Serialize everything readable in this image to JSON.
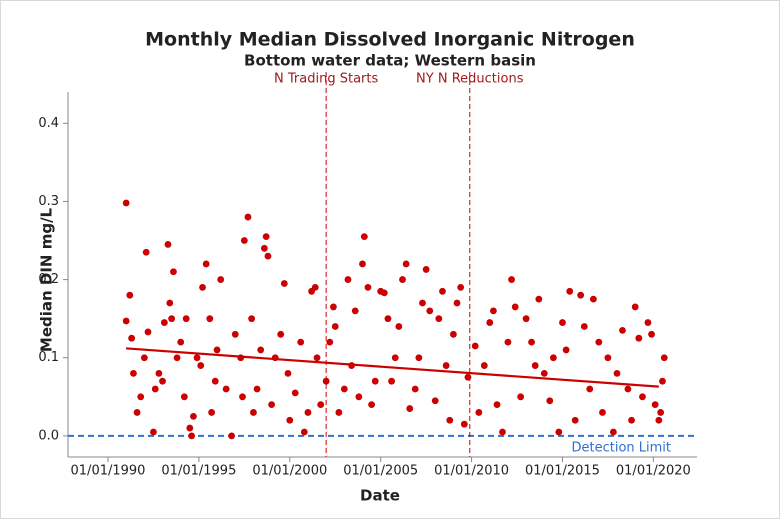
{
  "chart_data": {
    "type": "scatter",
    "title": "Monthly Median Dissolved Inorganic Nitrogen",
    "subtitle": "Bottom water data; Western basin",
    "xlabel": "Date",
    "ylabel": "Median DIN mg/L",
    "color": "#cc0000",
    "xlim": [
      1987.8,
      2022.4
    ],
    "ylim": [
      -0.027,
      0.44
    ],
    "xticks": [
      {
        "value": 1990,
        "label": "01/01/1990"
      },
      {
        "value": 1995,
        "label": "01/01/1995"
      },
      {
        "value": 2000,
        "label": "01/01/2000"
      },
      {
        "value": 2005,
        "label": "01/01/2005"
      },
      {
        "value": 2010,
        "label": "01/01/2010"
      },
      {
        "value": 2015,
        "label": "01/01/2015"
      },
      {
        "value": 2020,
        "label": "01/01/2020"
      }
    ],
    "yticks": [
      {
        "value": 0,
        "label": "0.0"
      },
      0.1,
      0.2,
      0.3,
      0.4
    ],
    "x": [
      1991.0,
      1991.0,
      1991.2,
      1991.3,
      1991.4,
      1991.6,
      1991.8,
      1992.0,
      1992.1,
      1992.2,
      1992.5,
      1992.6,
      1992.8,
      1993.0,
      1993.1,
      1993.3,
      1993.4,
      1993.5,
      1993.6,
      1993.8,
      1994.0,
      1994.2,
      1994.3,
      1994.5,
      1994.6,
      1994.7,
      1994.9,
      1995.1,
      1995.2,
      1995.4,
      1995.6,
      1995.7,
      1995.9,
      1996.0,
      1996.2,
      1996.5,
      1996.8,
      1997.0,
      1997.3,
      1997.4,
      1997.5,
      1997.7,
      1997.9,
      1998.0,
      1998.2,
      1998.4,
      1998.6,
      1998.7,
      1998.8,
      1999.0,
      1999.2,
      1999.5,
      1999.7,
      1999.9,
      2000.0,
      2000.3,
      2000.6,
      2000.8,
      2001.0,
      2001.2,
      2001.4,
      2001.5,
      2001.7,
      2002.0,
      2002.2,
      2002.4,
      2002.5,
      2002.7,
      2003.0,
      2003.2,
      2003.4,
      2003.6,
      2003.8,
      2004.0,
      2004.1,
      2004.3,
      2004.5,
      2004.7,
      2005.0,
      2005.2,
      2005.4,
      2005.6,
      2005.8,
      2006.0,
      2006.2,
      2006.4,
      2006.6,
      2006.9,
      2007.1,
      2007.3,
      2007.5,
      2007.7,
      2008.0,
      2008.2,
      2008.4,
      2008.6,
      2008.8,
      2009.0,
      2009.2,
      2009.4,
      2009.6,
      2009.8,
      2010.2,
      2010.4,
      2010.7,
      2011.0,
      2011.2,
      2011.4,
      2011.7,
      2012.0,
      2012.2,
      2012.4,
      2012.7,
      2013.0,
      2013.3,
      2013.5,
      2013.7,
      2014.0,
      2014.3,
      2014.5,
      2014.8,
      2015.0,
      2015.2,
      2015.4,
      2015.7,
      2016.0,
      2016.2,
      2016.5,
      2016.7,
      2017.0,
      2017.2,
      2017.5,
      2017.8,
      2018.0,
      2018.3,
      2018.6,
      2018.8,
      2019.0,
      2019.2,
      2019.4,
      2019.7,
      2019.9,
      2020.1,
      2020.3,
      2020.4,
      2020.5,
      2020.6
    ],
    "values": [
      0.298,
      0.147,
      0.18,
      0.125,
      0.08,
      0.03,
      0.05,
      0.1,
      0.235,
      0.133,
      0.005,
      0.06,
      0.08,
      0.07,
      0.145,
      0.245,
      0.17,
      0.15,
      0.21,
      0.1,
      0.12,
      0.05,
      0.15,
      0.01,
      0.0,
      0.025,
      0.1,
      0.09,
      0.19,
      0.22,
      0.15,
      0.03,
      0.07,
      0.11,
      0.2,
      0.06,
      0.0,
      0.13,
      0.1,
      0.05,
      0.25,
      0.28,
      0.15,
      0.03,
      0.06,
      0.11,
      0.24,
      0.255,
      0.23,
      0.04,
      0.1,
      0.13,
      0.195,
      0.08,
      0.02,
      0.055,
      0.12,
      0.005,
      0.03,
      0.185,
      0.19,
      0.1,
      0.04,
      0.07,
      0.12,
      0.165,
      0.14,
      0.03,
      0.06,
      0.2,
      0.09,
      0.16,
      0.05,
      0.22,
      0.255,
      0.19,
      0.04,
      0.07,
      0.185,
      0.183,
      0.15,
      0.07,
      0.1,
      0.14,
      0.2,
      0.22,
      0.035,
      0.06,
      0.1,
      0.17,
      0.213,
      0.16,
      0.045,
      0.15,
      0.185,
      0.09,
      0.02,
      0.13,
      0.17,
      0.19,
      0.015,
      0.075,
      0.115,
      0.03,
      0.09,
      0.145,
      0.16,
      0.04,
      0.005,
      0.12,
      0.2,
      0.165,
      0.05,
      0.15,
      0.12,
      0.09,
      0.175,
      0.08,
      0.045,
      0.1,
      0.005,
      0.145,
      0.11,
      0.185,
      0.02,
      0.18,
      0.14,
      0.06,
      0.175,
      0.12,
      0.03,
      0.1,
      0.005,
      0.08,
      0.135,
      0.06,
      0.02,
      0.165,
      0.125,
      0.05,
      0.145,
      0.13,
      0.04,
      0.02,
      0.03,
      0.07,
      0.1
    ],
    "trend": {
      "color": "#cc0000",
      "x": [
        1991.0,
        2020.3
      ],
      "values": [
        0.112,
        0.063
      ]
    },
    "vlines": [
      {
        "x": 2002.0,
        "label": "N Trading Starts",
        "color": "#cc0000"
      },
      {
        "x": 2009.9,
        "label": "NY N Reductions",
        "color": "#cc0000"
      }
    ],
    "hline": {
      "y": 0,
      "label": "Detection Limit",
      "color": "#2f6fd0"
    }
  }
}
